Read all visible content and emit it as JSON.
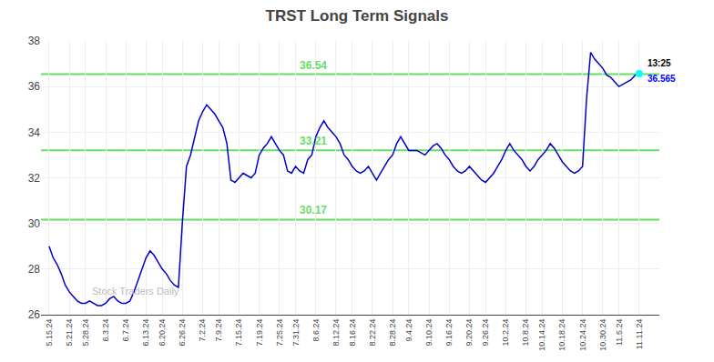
{
  "chart_data": {
    "type": "line",
    "title": "TRST Long Term Signals",
    "categories": [
      "5.15.24",
      null,
      null,
      null,
      null,
      "5.21.24",
      null,
      null,
      null,
      "5.28.24",
      null,
      null,
      null,
      null,
      "6.3.24",
      null,
      null,
      null,
      null,
      "6.7.24",
      null,
      null,
      null,
      null,
      "6.13.24",
      null,
      null,
      null,
      "6.20.24",
      null,
      null,
      null,
      null,
      "6.26.24",
      null,
      null,
      null,
      null,
      "7.2.24",
      null,
      null,
      null,
      "7.9.24",
      null,
      null,
      null,
      null,
      "7.15.24",
      null,
      null,
      null,
      null,
      "7.19.24",
      null,
      null,
      null,
      null,
      "7.25.24",
      null,
      null,
      null,
      "7.31.24",
      null,
      null,
      null,
      null,
      "8.6.24",
      null,
      null,
      null,
      null,
      "8.12.24",
      null,
      null,
      null,
      "8.16.24",
      null,
      null,
      null,
      null,
      "8.22.24",
      null,
      null,
      null,
      null,
      "8.28.24",
      null,
      null,
      null,
      "9.4.24",
      null,
      null,
      null,
      null,
      "9.10.24",
      null,
      null,
      null,
      null,
      "9.16.24",
      null,
      null,
      null,
      null,
      "9.20.24",
      null,
      null,
      null,
      "9.26.24",
      null,
      null,
      null,
      null,
      "10.2.24",
      null,
      null,
      null,
      null,
      "10.8.24",
      null,
      null,
      null,
      "10.14.24",
      null,
      null,
      null,
      null,
      "10.18.24",
      null,
      null,
      null,
      null,
      "10.24.24",
      null,
      null,
      null,
      null,
      "10.30.24",
      null,
      null,
      null,
      "11.5.24",
      null,
      null,
      null,
      null,
      "11.11.24"
    ],
    "values": [
      29.0,
      28.5,
      28.2,
      27.8,
      27.3,
      27.0,
      26.8,
      26.6,
      26.5,
      26.5,
      26.6,
      26.5,
      26.4,
      26.4,
      26.5,
      26.7,
      26.8,
      26.6,
      26.5,
      26.5,
      26.6,
      27.0,
      27.5,
      28.0,
      28.5,
      28.8,
      28.6,
      28.3,
      28.0,
      27.8,
      27.5,
      27.3,
      27.2,
      30.1,
      32.5,
      33.0,
      33.8,
      34.5,
      34.9,
      35.2,
      35.0,
      34.8,
      34.5,
      34.2,
      33.5,
      31.9,
      31.8,
      32.0,
      32.2,
      32.1,
      32.0,
      32.2,
      33.0,
      33.3,
      33.5,
      33.8,
      33.5,
      33.2,
      33.0,
      32.3,
      32.2,
      32.5,
      32.3,
      32.2,
      32.8,
      33.0,
      33.8,
      34.2,
      34.5,
      34.2,
      34.0,
      33.8,
      33.5,
      33.0,
      32.8,
      32.5,
      32.3,
      32.2,
      32.3,
      32.5,
      32.2,
      31.9,
      32.2,
      32.5,
      32.8,
      33.0,
      33.5,
      33.8,
      33.5,
      33.2,
      33.2,
      33.2,
      33.1,
      33.0,
      33.2,
      33.4,
      33.5,
      33.3,
      33.0,
      32.8,
      32.5,
      32.3,
      32.2,
      32.3,
      32.5,
      32.3,
      32.1,
      31.9,
      31.8,
      32.0,
      32.2,
      32.5,
      32.8,
      33.2,
      33.5,
      33.2,
      33.0,
      32.8,
      32.5,
      32.3,
      32.5,
      32.8,
      33.0,
      33.2,
      33.5,
      33.3,
      33.0,
      32.7,
      32.5,
      32.3,
      32.2,
      32.3,
      32.5,
      35.5,
      37.5,
      37.2,
      37.0,
      36.8,
      36.5,
      36.4,
      36.2,
      36.0,
      36.1,
      36.2,
      36.3,
      36.5,
      36.565
    ],
    "color": "#0000cc",
    "hlines": [
      {
        "y": 36.54,
        "label": "36.54",
        "color": "#66dd66"
      },
      {
        "y": 33.21,
        "label": "33.21",
        "color": "#66dd66"
      },
      {
        "y": 30.17,
        "label": "30.17",
        "color": "#66dd66"
      }
    ],
    "highlight": {
      "x": 146,
      "y": 36.565,
      "marker": "circle",
      "color": "cyan"
    },
    "annotations": [
      {
        "text": "13:25",
        "x": 146,
        "y": 36.565,
        "color": "#000000"
      },
      {
        "text": "36.565",
        "x": 146,
        "y": 36.565,
        "color": "#0000ff"
      }
    ],
    "watermark": {
      "text": "Stock Traders Daily",
      "color": "#bbbbbb"
    },
    "ylim": [
      26,
      38
    ],
    "yticks": [
      26,
      28,
      30,
      32,
      34,
      36,
      38
    ],
    "grid": true
  }
}
